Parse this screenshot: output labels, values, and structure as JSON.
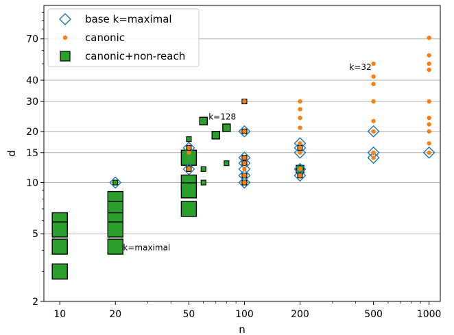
{
  "chart_data": {
    "type": "scatter",
    "title": "",
    "xlabel": "n",
    "ylabel": "d",
    "xscale": "log",
    "yscale": "log",
    "xlim": [
      8.2,
      1150
    ],
    "ylim": [
      2,
      110
    ],
    "xticks": [
      10,
      20,
      50,
      100,
      200,
      500,
      1000
    ],
    "xtick_labels": [
      "10",
      "20",
      "50",
      "100",
      "200",
      "500",
      "1000"
    ],
    "yticks": [
      2,
      5,
      10,
      15,
      20,
      30,
      40,
      70
    ],
    "ytick_labels": [
      "2",
      "5",
      "10",
      "15",
      "20",
      "30",
      "40",
      "70"
    ],
    "grid": "horizontal",
    "legend_position": "upper-left",
    "colors": {
      "base": "#1f77b4",
      "canonic": "#ff7f0e",
      "nonreach": "#2ca02c"
    },
    "series": [
      {
        "name": "base k=maximal",
        "marker": "diamond-open",
        "points": [
          [
            20,
            10
          ],
          [
            50,
            16
          ],
          [
            50,
            12
          ],
          [
            100,
            20
          ],
          [
            100,
            14
          ],
          [
            100,
            13
          ],
          [
            100,
            12
          ],
          [
            100,
            11
          ],
          [
            100,
            10
          ],
          [
            200,
            17
          ],
          [
            200,
            16
          ],
          [
            200,
            15
          ],
          [
            200,
            12
          ],
          [
            200,
            11
          ],
          [
            500,
            20
          ],
          [
            500,
            15
          ],
          [
            500,
            14
          ],
          [
            1000,
            15
          ]
        ]
      },
      {
        "name": "canonic",
        "marker": "dot",
        "points": [
          [
            50,
            16
          ],
          [
            50,
            15
          ],
          [
            50,
            12
          ],
          [
            100,
            30
          ],
          [
            100,
            20
          ],
          [
            100,
            14
          ],
          [
            100,
            13
          ],
          [
            100,
            12
          ],
          [
            100,
            11
          ],
          [
            100,
            10
          ],
          [
            200,
            30
          ],
          [
            200,
            27
          ],
          [
            200,
            24
          ],
          [
            200,
            21
          ],
          [
            200,
            17
          ],
          [
            200,
            16
          ],
          [
            200,
            15
          ],
          [
            200,
            12
          ],
          [
            200,
            11
          ],
          [
            500,
            50
          ],
          [
            500,
            42
          ],
          [
            500,
            38
          ],
          [
            500,
            30
          ],
          [
            500,
            23
          ],
          [
            500,
            20
          ],
          [
            500,
            15
          ],
          [
            500,
            14
          ],
          [
            1000,
            71
          ],
          [
            1000,
            56
          ],
          [
            1000,
            50
          ],
          [
            1000,
            46
          ],
          [
            1000,
            30
          ],
          [
            1000,
            24
          ],
          [
            1000,
            22
          ],
          [
            1000,
            20
          ],
          [
            1000,
            17
          ],
          [
            1000,
            15
          ]
        ]
      },
      {
        "name": "canonic+non-reach",
        "marker": "square",
        "points": [
          {
            "x": 10,
            "y": 6,
            "size": "large"
          },
          {
            "x": 10,
            "y": 5.3,
            "size": "large"
          },
          {
            "x": 10,
            "y": 4.2,
            "size": "large"
          },
          {
            "x": 10,
            "y": 3,
            "size": "large"
          },
          {
            "x": 20,
            "y": 10,
            "size": "small"
          },
          {
            "x": 20,
            "y": 8,
            "size": "large"
          },
          {
            "x": 20,
            "y": 7,
            "size": "large"
          },
          {
            "x": 20,
            "y": 6,
            "size": "large"
          },
          {
            "x": 20,
            "y": 5.3,
            "size": "large"
          },
          {
            "x": 20,
            "y": 4.2,
            "size": "large"
          },
          {
            "x": 50,
            "y": 18,
            "size": "small"
          },
          {
            "x": 50,
            "y": 16,
            "size": "small"
          },
          {
            "x": 50,
            "y": 12,
            "size": "small"
          },
          {
            "x": 50,
            "y": 14,
            "size": "large"
          },
          {
            "x": 50,
            "y": 10,
            "size": "large"
          },
          {
            "x": 50,
            "y": 9,
            "size": "large"
          },
          {
            "x": 50,
            "y": 7,
            "size": "large"
          },
          {
            "x": 60,
            "y": 23,
            "size": "medium"
          },
          {
            "x": 70,
            "y": 19,
            "size": "medium"
          },
          {
            "x": 80,
            "y": 21,
            "size": "medium"
          },
          {
            "x": 60,
            "y": 12,
            "size": "small"
          },
          {
            "x": 60,
            "y": 10,
            "size": "small"
          },
          {
            "x": 80,
            "y": 13,
            "size": "small"
          },
          {
            "x": 100,
            "y": 30,
            "size": "small"
          },
          {
            "x": 100,
            "y": 20,
            "size": "small"
          },
          {
            "x": 100,
            "y": 14,
            "size": "small"
          },
          {
            "x": 100,
            "y": 13,
            "size": "small"
          },
          {
            "x": 100,
            "y": 11,
            "size": "small"
          },
          {
            "x": 100,
            "y": 10,
            "size": "small"
          },
          {
            "x": 200,
            "y": 16,
            "size": "small"
          },
          {
            "x": 200,
            "y": 12,
            "size": "medium"
          },
          {
            "x": 200,
            "y": 11,
            "size": "small"
          }
        ]
      }
    ],
    "annotations": [
      {
        "text": "k=128",
        "x": 64,
        "y": 23.5
      },
      {
        "text": "k=32",
        "x": 370,
        "y": 46
      },
      {
        "text": "k=maximal",
        "x": 22,
        "y": 4
      }
    ]
  }
}
